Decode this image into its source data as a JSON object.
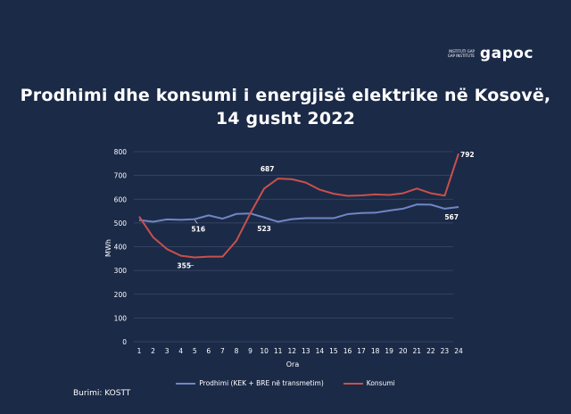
{
  "logo": {
    "small_line1": "INSTITUTI GAP",
    "small_line2": "GAP INSTITUTE",
    "wordmark": "gapoc"
  },
  "title_line1": "Prodhimi dhe konsumi i energjisë elektrike në Kosovë,",
  "title_line2": "14 gusht 2022",
  "source": "Burimi: KOSTT",
  "colors": {
    "background": "#1b2a47",
    "production": "#7086c4",
    "consumption": "#c9504c",
    "grid": "#3a4a68"
  },
  "chart_data": {
    "type": "line",
    "title": "Prodhimi dhe konsumi i energjisë elektrike në Kosovë, 14 gusht 2022",
    "xlabel": "Ora",
    "ylabel": "MWh",
    "ylim": [
      0,
      800
    ],
    "yticks": [
      0,
      100,
      200,
      300,
      400,
      500,
      600,
      700,
      800
    ],
    "x": [
      1,
      2,
      3,
      4,
      5,
      6,
      7,
      8,
      9,
      10,
      11,
      12,
      13,
      14,
      15,
      16,
      17,
      18,
      19,
      20,
      21,
      22,
      23,
      24
    ],
    "series": [
      {
        "name": "Prodhimi (KEK + BRE në transmetim)",
        "color": "#7086c4",
        "values": [
          512,
          505,
          515,
          513,
          516,
          532,
          518,
          538,
          540,
          523,
          505,
          516,
          520,
          520,
          520,
          537,
          542,
          543,
          552,
          560,
          578,
          577,
          560,
          567
        ]
      },
      {
        "name": "Konsumi",
        "color": "#c9504c",
        "values": [
          527,
          440,
          390,
          362,
          355,
          358,
          358,
          425,
          540,
          645,
          687,
          684,
          670,
          640,
          623,
          614,
          616,
          620,
          618,
          625,
          645,
          625,
          615,
          792
        ]
      }
    ],
    "annotations": [
      {
        "text": "516",
        "x": 5,
        "series": 0
      },
      {
        "text": "523",
        "x": 10,
        "series": 0
      },
      {
        "text": "567",
        "x": 24,
        "series": 0
      },
      {
        "text": "355",
        "x": 5,
        "series": 1
      },
      {
        "text": "687",
        "x": 11,
        "series": 1
      },
      {
        "text": "792",
        "x": 24,
        "series": 1
      }
    ],
    "legend_position": "bottom"
  }
}
